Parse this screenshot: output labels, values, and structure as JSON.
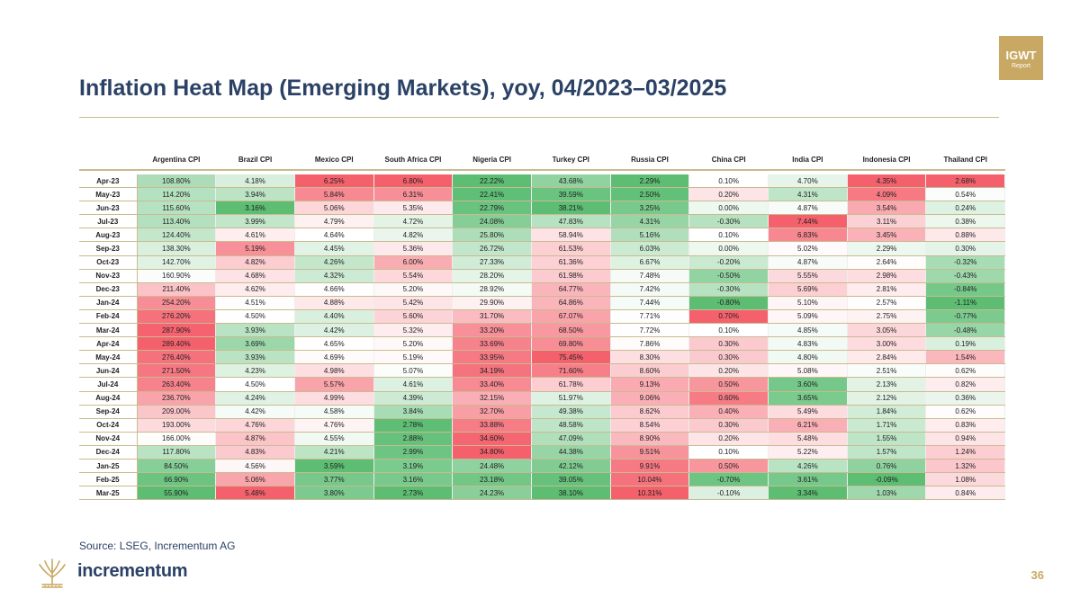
{
  "badge": {
    "line1": "IGWT",
    "line2": "Report"
  },
  "title": "Inflation Heat Map (Emerging Markets), yoy, 04/2023–03/2025",
  "source": "Source: LSEG, Incrementum AG",
  "brand": "incrementum",
  "page_number": "36",
  "colors": {
    "brand_blue": "#2b4266",
    "gold": "#c8a862",
    "low": "#5cbd73",
    "mid": "#ffffff",
    "high": "#f4616d"
  },
  "chart_data": {
    "type": "heatmap",
    "title": "Inflation Heat Map (Emerging Markets), yoy, 04/2023–03/2025",
    "columns": [
      "Argentina CPI",
      "Brazil CPI",
      "Mexico CPI",
      "South Africa CPI",
      "Nigeria CPI",
      "Turkey CPI",
      "Russia CPI",
      "China CPI",
      "India CPI",
      "Indonesia CPI",
      "Thailand CPI"
    ],
    "rows": [
      "Apr-23",
      "May-23",
      "Jun-23",
      "Jul-23",
      "Aug-23",
      "Sep-23",
      "Oct-23",
      "Nov-23",
      "Dec-23",
      "Jan-24",
      "Feb-24",
      "Mar-24",
      "Apr-24",
      "May-24",
      "Jun-24",
      "Jul-24",
      "Aug-24",
      "Sep-24",
      "Oct-24",
      "Nov-24",
      "Dec-24",
      "Jan-25",
      "Feb-25",
      "Mar-25"
    ],
    "values": [
      [
        108.8,
        4.18,
        6.25,
        6.8,
        22.22,
        43.68,
        2.29,
        0.1,
        4.7,
        4.35,
        2.68
      ],
      [
        114.2,
        3.94,
        5.84,
        6.31,
        22.41,
        39.59,
        2.5,
        0.2,
        4.31,
        4.09,
        0.54
      ],
      [
        115.6,
        3.16,
        5.06,
        5.35,
        22.79,
        38.21,
        3.25,
        0.0,
        4.87,
        3.54,
        0.24
      ],
      [
        113.4,
        3.99,
        4.79,
        4.72,
        24.08,
        47.83,
        4.31,
        -0.3,
        7.44,
        3.11,
        0.38
      ],
      [
        124.4,
        4.61,
        4.64,
        4.82,
        25.8,
        58.94,
        5.16,
        0.1,
        6.83,
        3.45,
        0.88
      ],
      [
        138.3,
        5.19,
        4.45,
        5.36,
        26.72,
        61.53,
        6.03,
        0.0,
        5.02,
        2.29,
        0.3
      ],
      [
        142.7,
        4.82,
        4.26,
        6.0,
        27.33,
        61.36,
        6.67,
        -0.2,
        4.87,
        2.64,
        -0.32
      ],
      [
        160.9,
        4.68,
        4.32,
        5.54,
        28.2,
        61.98,
        7.48,
        -0.5,
        5.55,
        2.98,
        -0.43
      ],
      [
        211.4,
        4.62,
        4.66,
        5.2,
        28.92,
        64.77,
        7.42,
        -0.3,
        5.69,
        2.81,
        -0.84
      ],
      [
        254.2,
        4.51,
        4.88,
        5.42,
        29.9,
        64.86,
        7.44,
        -0.8,
        5.1,
        2.57,
        -1.11
      ],
      [
        276.2,
        4.5,
        4.4,
        5.6,
        31.7,
        67.07,
        7.71,
        0.7,
        5.09,
        2.75,
        -0.77
      ],
      [
        287.9,
        3.93,
        4.42,
        5.32,
        33.2,
        68.5,
        7.72,
        0.1,
        4.85,
        3.05,
        -0.48
      ],
      [
        289.4,
        3.69,
        4.65,
        5.2,
        33.69,
        69.8,
        7.86,
        0.3,
        4.83,
        3.0,
        0.19
      ],
      [
        276.4,
        3.93,
        4.69,
        5.19,
        33.95,
        75.45,
        8.3,
        0.3,
        4.8,
        2.84,
        1.54
      ],
      [
        271.5,
        4.23,
        4.98,
        5.07,
        34.19,
        71.6,
        8.6,
        0.2,
        5.08,
        2.51,
        0.62
      ],
      [
        263.4,
        4.5,
        5.57,
        4.61,
        33.4,
        61.78,
        9.13,
        0.5,
        3.6,
        2.13,
        0.82
      ],
      [
        236.7,
        4.24,
        4.99,
        4.39,
        32.15,
        51.97,
        9.06,
        0.6,
        3.65,
        2.12,
        0.36
      ],
      [
        209.0,
        4.42,
        4.58,
        3.84,
        32.7,
        49.38,
        8.62,
        0.4,
        5.49,
        1.84,
        0.62
      ],
      [
        193.0,
        4.76,
        4.76,
        2.78,
        33.88,
        48.58,
        8.54,
        0.3,
        6.21,
        1.71,
        0.83
      ],
      [
        166.0,
        4.87,
        4.55,
        2.88,
        34.6,
        47.09,
        8.9,
        0.2,
        5.48,
        1.55,
        0.94
      ],
      [
        117.8,
        4.83,
        4.21,
        2.99,
        34.8,
        44.38,
        9.51,
        0.1,
        5.22,
        1.57,
        1.24
      ],
      [
        84.5,
        4.56,
        3.59,
        3.19,
        24.48,
        42.12,
        9.91,
        0.5,
        4.26,
        0.76,
        1.32
      ],
      [
        66.9,
        5.06,
        3.77,
        3.16,
        23.18,
        39.05,
        10.04,
        -0.7,
        3.61,
        -0.09,
        1.08
      ],
      [
        55.9,
        5.48,
        3.8,
        2.73,
        24.23,
        38.1,
        10.31,
        -0.1,
        3.34,
        1.03,
        0.84
      ]
    ],
    "value_format": "percent_2dp",
    "color_scale": "per-column green-white-red"
  }
}
